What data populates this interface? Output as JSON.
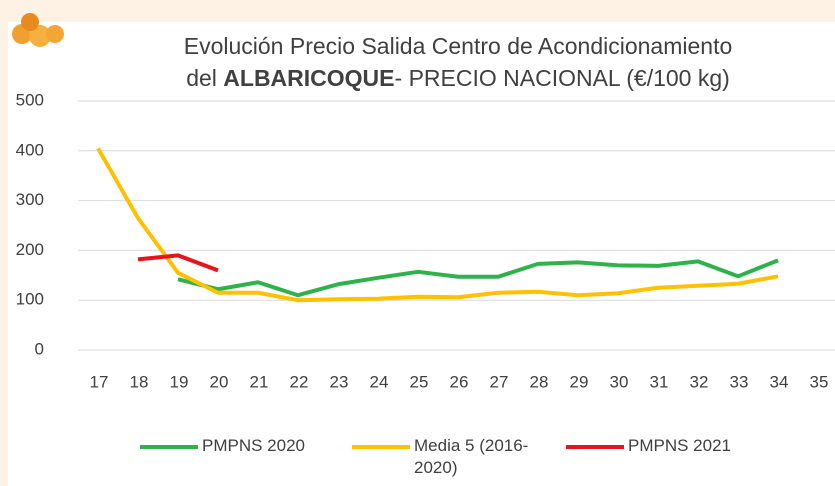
{
  "chart_data": {
    "type": "line",
    "title": [
      "Evolución Precio Salida Centro de Acondicionamiento",
      "del ",
      "ALBARICOQUE",
      "- PRECIO NACIONAL (€/100 kg)"
    ],
    "categories": [
      17,
      18,
      19,
      20,
      21,
      22,
      23,
      24,
      25,
      26,
      27,
      28,
      29,
      30,
      31,
      32,
      33,
      34,
      35
    ],
    "series": [
      {
        "name": "PMPNS 2020",
        "color": "#2db34a",
        "values": [
          null,
          null,
          142,
          122,
          136,
          110,
          132,
          145,
          157,
          147,
          147,
          173,
          176,
          170,
          169,
          178,
          148,
          180,
          null
        ]
      },
      {
        "name": "Media 5 (2016-2020)",
        "color": "#ffc000",
        "values": [
          405,
          265,
          155,
          115,
          115,
          100,
          102,
          103,
          107,
          106,
          115,
          117,
          110,
          114,
          125,
          129,
          133,
          148,
          null
        ]
      },
      {
        "name": "PMPNS 2021",
        "color": "#e8141b",
        "values": [
          null,
          182,
          190,
          160,
          null,
          null,
          null,
          null,
          null,
          null,
          null,
          null,
          null,
          null,
          null,
          null,
          null,
          null,
          null
        ]
      }
    ],
    "ylim": [
      0,
      500
    ],
    "yticks": [
      0,
      100,
      200,
      300,
      400,
      500
    ],
    "grid": true
  }
}
